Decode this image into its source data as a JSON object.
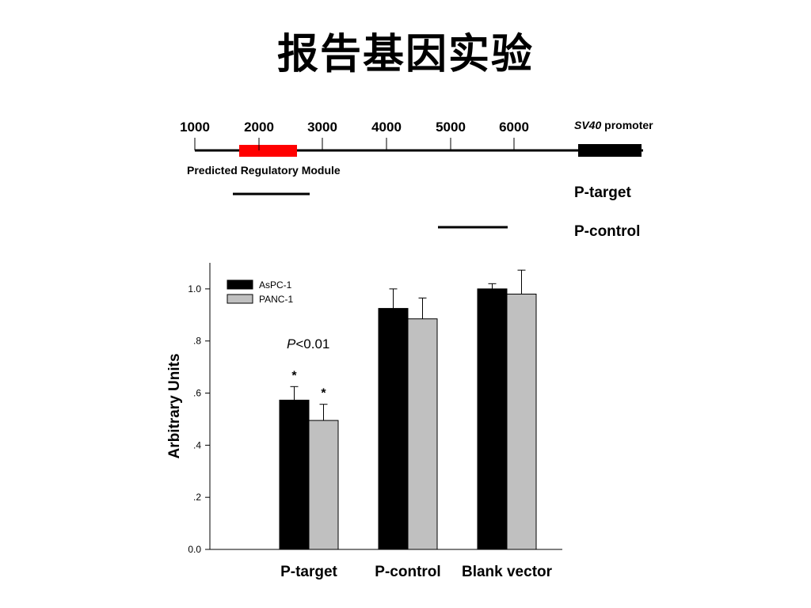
{
  "title": "报告基因实验",
  "map": {
    "tick_labels": [
      "1000",
      "2000",
      "3000",
      "4000",
      "5000",
      "6000"
    ],
    "sv40_italic": "SV40",
    "sv40_rest": " promoter",
    "prm_label": "Predicted Regulatory Module",
    "ptarget_label": "P-target",
    "pcontrol_label": "P-control",
    "colors": {
      "prm": "#ff0000",
      "sv40": "#000000"
    }
  },
  "chart_data": {
    "type": "bar",
    "categories": [
      "P-target",
      "P-control",
      "Blank vector"
    ],
    "series": [
      {
        "name": "AsPC-1",
        "values": [
          0.573,
          0.925,
          1.0
        ],
        "errors": [
          0.052,
          0.075,
          0.02
        ],
        "color": "#000000"
      },
      {
        "name": "PANC-1",
        "values": [
          0.495,
          0.885,
          0.98
        ],
        "errors": [
          0.062,
          0.08,
          0.092
        ],
        "color": "#c0c0c0"
      }
    ],
    "ylabel": "Arbitrary Units",
    "ylim": [
      0,
      1.1
    ],
    "yticks": [
      0.0,
      0.2,
      0.4,
      0.6,
      0.8,
      1.0
    ],
    "ytick_labels": [
      "0.0",
      ".2",
      ".4",
      ".6",
      ".8",
      "1.0"
    ],
    "annotation_p_italic": "P",
    "annotation_p_rest": "<0.01",
    "significance_marker": "*",
    "legend_position": "top-left",
    "grid": false
  }
}
